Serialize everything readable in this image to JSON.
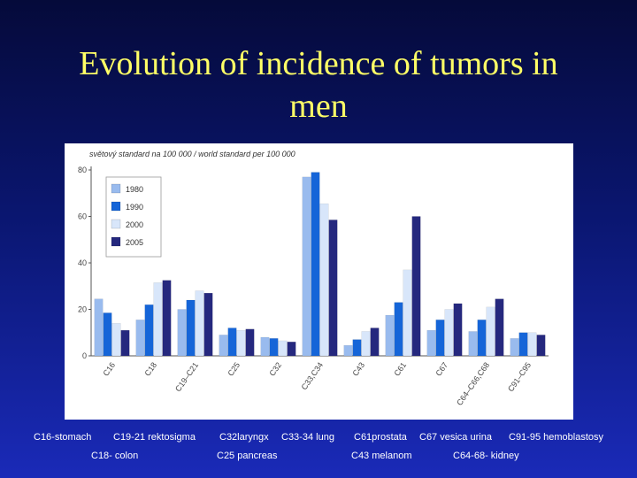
{
  "slide": {
    "title_line1": "Evolution of incidence of tumors in",
    "title_line2": "men"
  },
  "chart_data": {
    "type": "bar",
    "title": "světový standard na 100 000 / world standard per 100 000",
    "xlabel": "",
    "ylabel": "",
    "ylim": [
      0,
      80
    ],
    "yticks": [
      0,
      20,
      40,
      60,
      80
    ],
    "grid": false,
    "legend_position": "top-left",
    "categories": [
      "C16",
      "C18",
      "C19–C21",
      "C25",
      "C32",
      "C33,C34",
      "C43",
      "C61",
      "C67",
      "C64–C66,C68",
      "C91–C95"
    ],
    "series": [
      {
        "name": "1980",
        "color": "#99bbee",
        "values": [
          24.5,
          15.5,
          20,
          9,
          8,
          77,
          4.5,
          17.5,
          11,
          10.5,
          7.5
        ]
      },
      {
        "name": "1990",
        "color": "#1565d8",
        "values": [
          18.5,
          22,
          24,
          12,
          7.5,
          79,
          7,
          23,
          15.5,
          15.5,
          10
        ]
      },
      {
        "name": "2000",
        "color": "#d8e6fa",
        "values": [
          14,
          31.5,
          28,
          11,
          6.5,
          65.5,
          10.5,
          37,
          20,
          21,
          10
        ]
      },
      {
        "name": "2005",
        "color": "#25287e",
        "values": [
          11,
          32.5,
          27,
          11.5,
          6,
          58.5,
          12,
          60,
          22.5,
          24.5,
          9
        ]
      }
    ]
  },
  "captions": {
    "row1": [
      "C16-stomach",
      "C19-21 rektosigma",
      "C32laryngx",
      "C33-34 lung",
      "C61prostata",
      "C67 vesica urina",
      "C91-95 hemoblastosy"
    ],
    "row2": [
      "C18- colon",
      "C25 pancreas",
      "C43 melanom",
      "C64-68- kidney"
    ]
  }
}
